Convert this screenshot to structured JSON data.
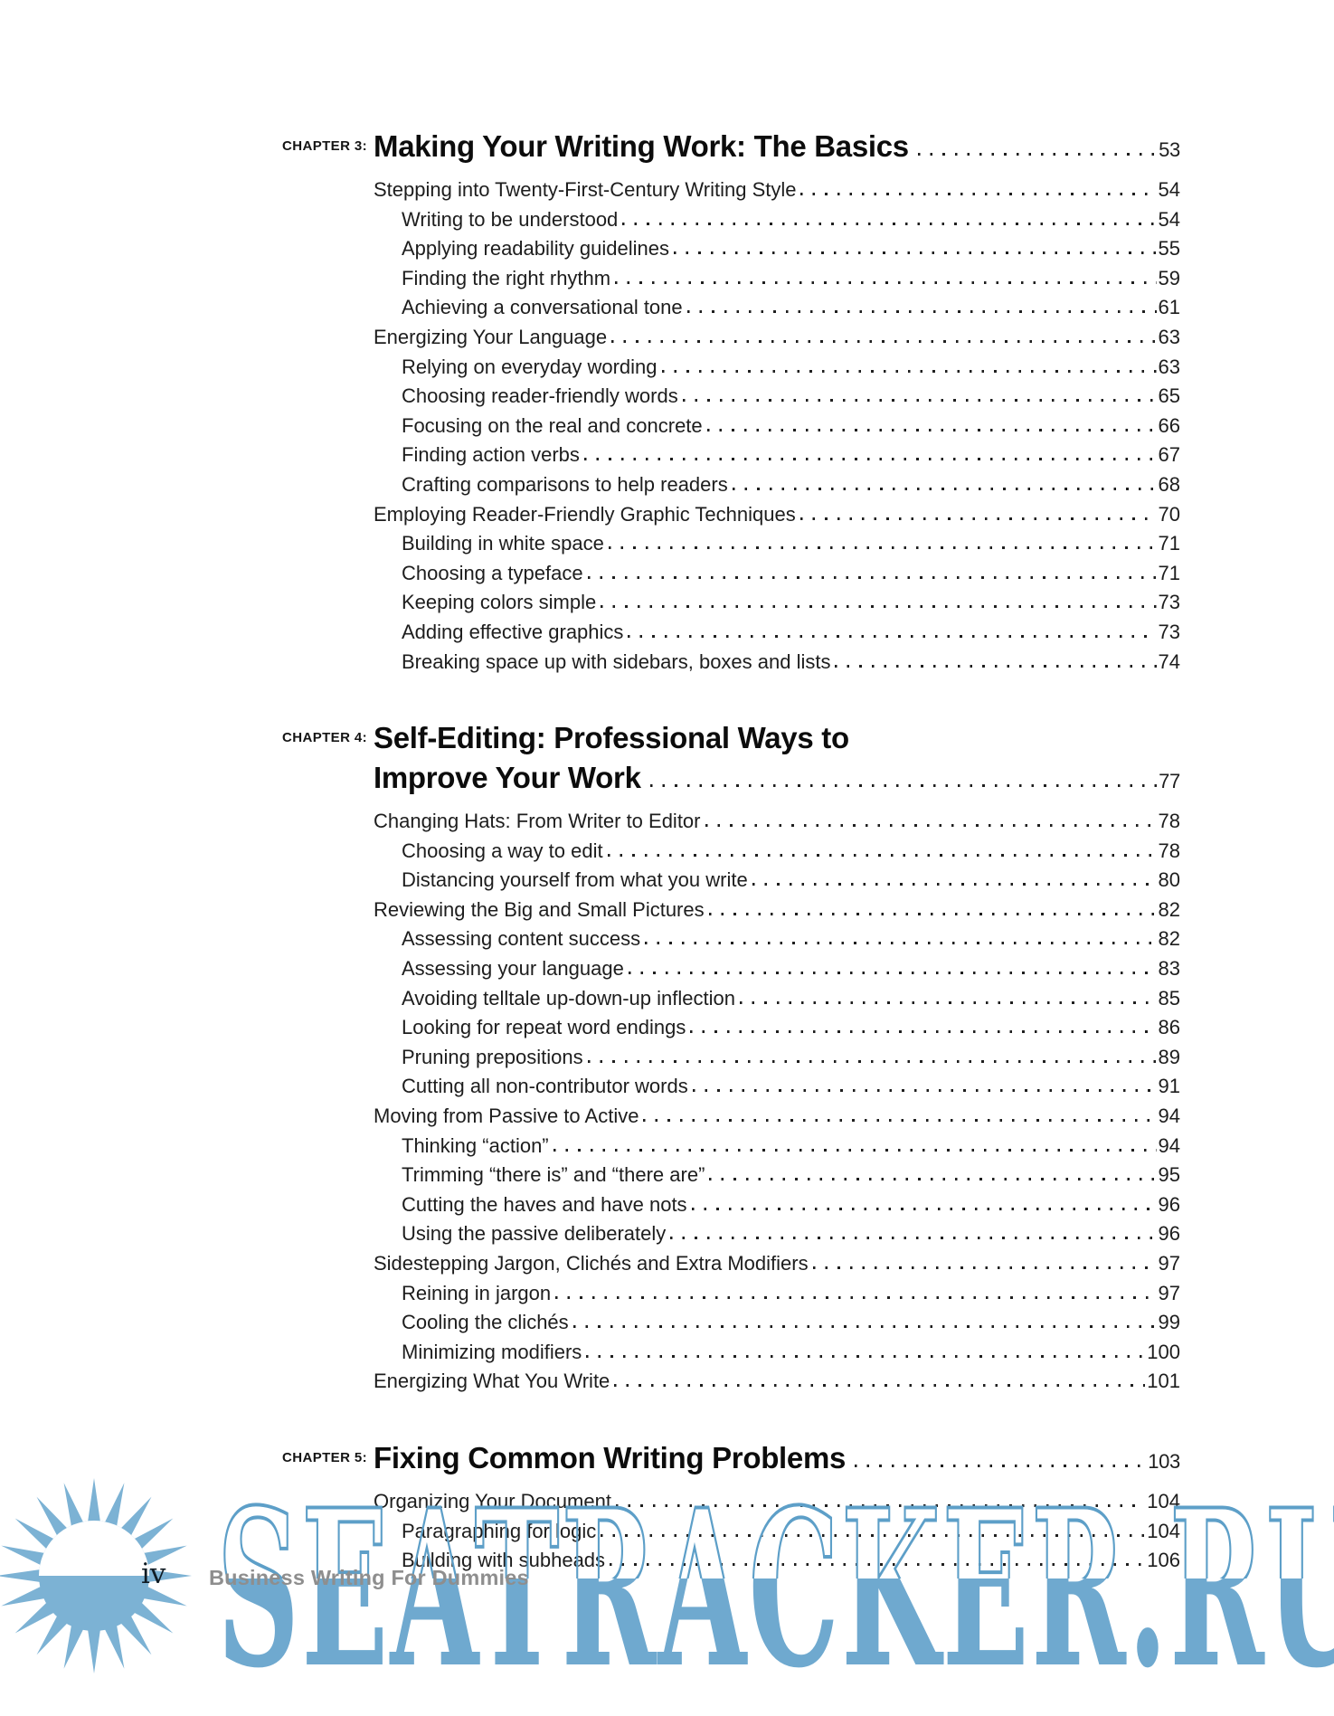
{
  "page": {
    "footer": {
      "page_number": "iv",
      "book_title": "Business Writing For Dummies"
    },
    "watermark": {
      "text": "SEATRACKER.RU",
      "color": "#5d9fc8"
    },
    "logo": {
      "icon": "sun-icon",
      "color": "#7cb2d4"
    }
  },
  "toc": {
    "chapters": [
      {
        "label": "CHAPTER 3:",
        "title_lines": [
          "Making Your Writing Work: The Basics"
        ],
        "page": "53",
        "entries": [
          {
            "level": 1,
            "title": "Stepping into Twenty-First-Century Writing Style",
            "page": "54"
          },
          {
            "level": 2,
            "title": "Writing to be understood",
            "page": "54"
          },
          {
            "level": 2,
            "title": "Applying readability guidelines",
            "page": "55"
          },
          {
            "level": 2,
            "title": "Finding the right rhythm",
            "page": "59"
          },
          {
            "level": 2,
            "title": "Achieving a conversational tone",
            "page": "61"
          },
          {
            "level": 1,
            "title": "Energizing Your Language",
            "page": "63"
          },
          {
            "level": 2,
            "title": "Relying on everyday wording",
            "page": "63"
          },
          {
            "level": 2,
            "title": "Choosing reader-friendly words",
            "page": "65"
          },
          {
            "level": 2,
            "title": "Focusing on the real and concrete",
            "page": "66"
          },
          {
            "level": 2,
            "title": "Finding action verbs",
            "page": "67"
          },
          {
            "level": 2,
            "title": "Crafting comparisons to help readers",
            "page": "68"
          },
          {
            "level": 1,
            "title": "Employing Reader-Friendly Graphic Techniques",
            "page": "70"
          },
          {
            "level": 2,
            "title": "Building in white space",
            "page": "71"
          },
          {
            "level": 2,
            "title": "Choosing a typeface",
            "page": "71"
          },
          {
            "level": 2,
            "title": "Keeping colors simple",
            "page": "73"
          },
          {
            "level": 2,
            "title": "Adding effective graphics",
            "page": "73"
          },
          {
            "level": 2,
            "title": "Breaking space up with sidebars, boxes and lists",
            "page": "74"
          }
        ]
      },
      {
        "label": "CHAPTER 4:",
        "title_lines": [
          "Self-Editing: Professional Ways to",
          "Improve Your Work"
        ],
        "page": "77",
        "entries": [
          {
            "level": 1,
            "title": "Changing Hats: From Writer to Editor",
            "page": "78"
          },
          {
            "level": 2,
            "title": "Choosing a way to edit",
            "page": "78"
          },
          {
            "level": 2,
            "title": "Distancing yourself from what you write",
            "page": "80"
          },
          {
            "level": 1,
            "title": "Reviewing the Big and Small Pictures",
            "page": "82"
          },
          {
            "level": 2,
            "title": "Assessing content success",
            "page": "82"
          },
          {
            "level": 2,
            "title": "Assessing your language",
            "page": "83"
          },
          {
            "level": 2,
            "title": "Avoiding telltale up-down-up inflection",
            "page": "85"
          },
          {
            "level": 2,
            "title": "Looking for repeat word endings",
            "page": "86"
          },
          {
            "level": 2,
            "title": "Pruning prepositions",
            "page": "89"
          },
          {
            "level": 2,
            "title": "Cutting all non-contributor words",
            "page": "91"
          },
          {
            "level": 1,
            "title": "Moving from Passive to Active",
            "page": "94"
          },
          {
            "level": 2,
            "title": "Thinking “action”",
            "page": "94"
          },
          {
            "level": 2,
            "title": "Trimming “there is” and “there are”",
            "page": "95"
          },
          {
            "level": 2,
            "title": "Cutting the haves and have nots",
            "page": "96"
          },
          {
            "level": 2,
            "title": "Using the passive deliberately",
            "page": "96"
          },
          {
            "level": 1,
            "title": "Sidestepping Jargon, Clichés and Extra Modifiers",
            "page": "97"
          },
          {
            "level": 2,
            "title": "Reining in jargon",
            "page": "97"
          },
          {
            "level": 2,
            "title": "Cooling the clichés",
            "page": "99"
          },
          {
            "level": 2,
            "title": "Minimizing modifiers",
            "page": "100"
          },
          {
            "level": 1,
            "title": "Energizing What You Write",
            "page": "101"
          }
        ]
      },
      {
        "label": "CHAPTER 5:",
        "title_lines": [
          "Fixing Common Writing Problems"
        ],
        "page": "103",
        "entries": [
          {
            "level": 1,
            "title": "Organizing Your Document",
            "page": "104"
          },
          {
            "level": 2,
            "title": "Paragraphing for logic",
            "page": "104"
          },
          {
            "level": 2,
            "title": "Building with subheads",
            "page": "106"
          }
        ]
      }
    ]
  }
}
